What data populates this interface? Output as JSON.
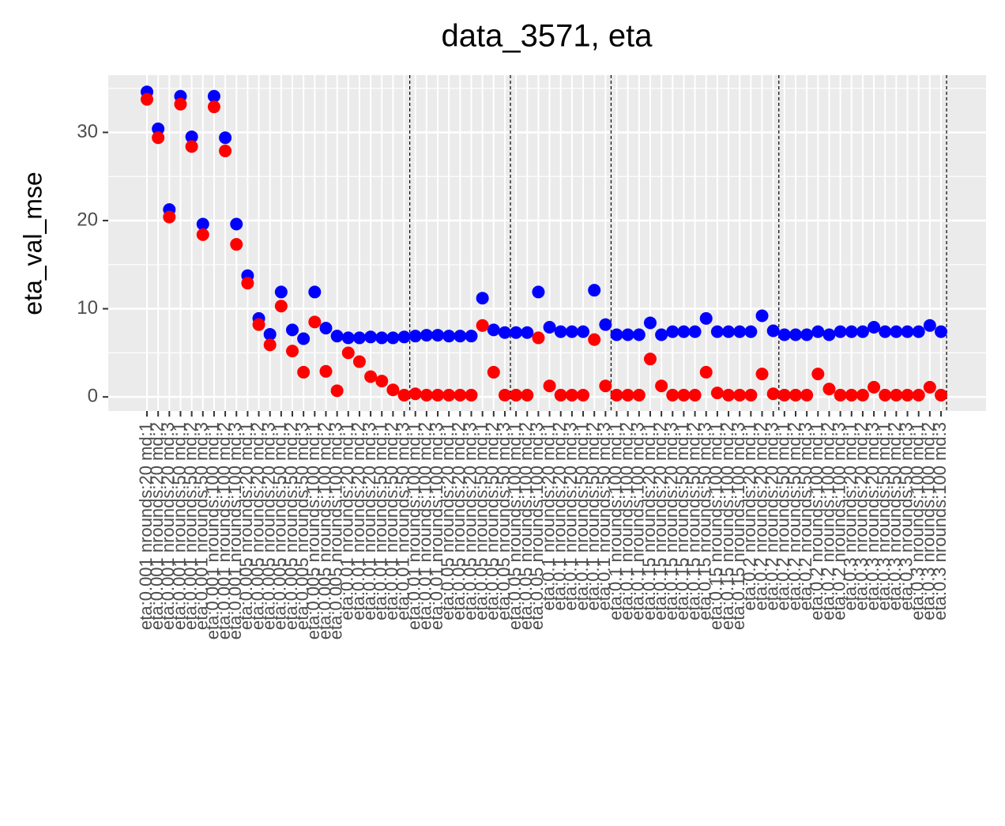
{
  "chart_data": {
    "type": "scatter",
    "title": "data_3571, eta",
    "y_label": "eta_val_mse",
    "categories": [
      "eta:0.001 nrounds:20 md:1",
      "eta:0.001 nrounds:20 md:2",
      "eta:0.001 nrounds:20 md:3",
      "eta:0.001 nrounds:50 md:1",
      "eta:0.001 nrounds:50 md:2",
      "eta:0.001 nrounds:50 md:3",
      "eta:0.001 nrounds:100 md:1",
      "eta:0.001 nrounds:100 md:2",
      "eta:0.001 nrounds:100 md:3",
      "eta:0.005 nrounds:20 md:1",
      "eta:0.005 nrounds:20 md:2",
      "eta:0.005 nrounds:20 md:3",
      "eta:0.005 nrounds:50 md:1",
      "eta:0.005 nrounds:50 md:2",
      "eta:0.005 nrounds:50 md:3",
      "eta:0.005 nrounds:100 md:1",
      "eta:0.005 nrounds:100 md:2",
      "eta:0.005 nrounds:100 md:3",
      "eta:0.01 nrounds:20 md:1",
      "eta:0.01 nrounds:20 md:2",
      "eta:0.01 nrounds:20 md:3",
      "eta:0.01 nrounds:50 md:1",
      "eta:0.01 nrounds:50 md:2",
      "eta:0.01 nrounds:50 md:3",
      "eta:0.01 nrounds:100 md:1",
      "eta:0.01 nrounds:100 md:2",
      "eta:0.01 nrounds:100 md:3",
      "eta:0.05 nrounds:20 md:1",
      "eta:0.05 nrounds:20 md:2",
      "eta:0.05 nrounds:20 md:3",
      "eta:0.05 nrounds:50 md:1",
      "eta:0.05 nrounds:50 md:2",
      "eta:0.05 nrounds:50 md:3",
      "eta:0.05 nrounds:100 md:1",
      "eta:0.05 nrounds:100 md:2",
      "eta:0.05 nrounds:100 md:3",
      "eta:0.1 nrounds:20 md:1",
      "eta:0.1 nrounds:20 md:2",
      "eta:0.1 nrounds:20 md:3",
      "eta:0.1 nrounds:50 md:1",
      "eta:0.1 nrounds:50 md:2",
      "eta:0.1 nrounds:50 md:3",
      "eta:0.1 nrounds:100 md:1",
      "eta:0.1 nrounds:100 md:2",
      "eta:0.1 nrounds:100 md:3",
      "eta:0.15 nrounds:20 md:1",
      "eta:0.15 nrounds:20 md:2",
      "eta:0.15 nrounds:20 md:3",
      "eta:0.15 nrounds:50 md:1",
      "eta:0.15 nrounds:50 md:2",
      "eta:0.15 nrounds:50 md:3",
      "eta:0.15 nrounds:100 md:1",
      "eta:0.15 nrounds:100 md:2",
      "eta:0.15 nrounds:100 md:3",
      "eta:0.2 nrounds:20 md:1",
      "eta:0.2 nrounds:20 md:2",
      "eta:0.2 nrounds:20 md:3",
      "eta:0.2 nrounds:50 md:1",
      "eta:0.2 nrounds:50 md:2",
      "eta:0.2 nrounds:50 md:3",
      "eta:0.2 nrounds:100 md:1",
      "eta:0.2 nrounds:100 md:2",
      "eta:0.2 nrounds:100 md:3",
      "eta:0.3 nrounds:20 md:1",
      "eta:0.3 nrounds:20 md:2",
      "eta:0.3 nrounds:20 md:3",
      "eta:0.3 nrounds:50 md:1",
      "eta:0.3 nrounds:50 md:2",
      "eta:0.3 nrounds:50 md:3",
      "eta:0.3 nrounds:100 md:1",
      "eta:0.3 nrounds:100 md:2",
      "eta:0.3 nrounds:100 md:3"
    ],
    "series": [
      {
        "color": "#0000FF",
        "values": [
          34.6,
          30.4,
          21.25,
          34.1,
          29.5,
          19.6,
          34.1,
          29.4,
          19.6,
          13.75,
          8.9,
          7.1,
          11.9,
          7.6,
          6.6,
          11.9,
          7.8,
          6.9,
          6.7,
          6.7,
          6.8,
          6.7,
          6.7,
          6.8,
          6.9,
          7.0,
          7.0,
          6.9,
          6.9,
          6.9,
          11.2,
          7.6,
          7.3,
          7.3,
          7.3,
          11.9,
          7.9,
          7.4,
          7.4,
          7.4,
          12.1,
          8.2,
          7.05,
          7.05,
          7.05,
          8.4,
          7.05,
          7.4,
          7.4,
          7.4,
          8.9,
          7.4,
          7.4,
          7.4,
          7.4,
          9.2,
          7.5,
          7.05,
          7.05,
          7.05,
          7.4,
          7.05,
          7.4,
          7.4,
          7.4,
          7.9,
          7.4,
          7.4,
          7.4,
          7.4,
          8.1,
          7.4
        ]
      },
      {
        "color": "#FF0000",
        "values": [
          33.75,
          29.4,
          20.4,
          33.2,
          28.4,
          18.4,
          32.9,
          27.9,
          17.3,
          12.9,
          8.2,
          5.9,
          10.3,
          5.2,
          2.8,
          8.5,
          2.9,
          0.7,
          5.0,
          4.0,
          2.3,
          1.8,
          0.8,
          0.2,
          0.35,
          0.2,
          0.2,
          0.2,
          0.2,
          0.2,
          8.1,
          2.8,
          0.2,
          0.2,
          0.2,
          6.7,
          1.25,
          0.2,
          0.2,
          0.2,
          6.5,
          1.25,
          0.2,
          0.2,
          0.2,
          4.3,
          1.25,
          0.2,
          0.2,
          0.2,
          2.8,
          0.45,
          0.2,
          0.2,
          0.2,
          2.6,
          0.35,
          0.2,
          0.2,
          0.2,
          2.6,
          0.9,
          0.2,
          0.2,
          0.2,
          1.1,
          0.2,
          0.2,
          0.2,
          0.2,
          1.1,
          0.2
        ]
      }
    ],
    "vlines": [
      23.5,
      32.5,
      41.5,
      56.5,
      71.5
    ],
    "ylim": [
      -1.6,
      36.5
    ],
    "yticks": [
      0,
      10,
      20,
      30
    ],
    "y_minor_ticks": [
      5,
      15,
      25,
      35
    ],
    "grid": true
  }
}
